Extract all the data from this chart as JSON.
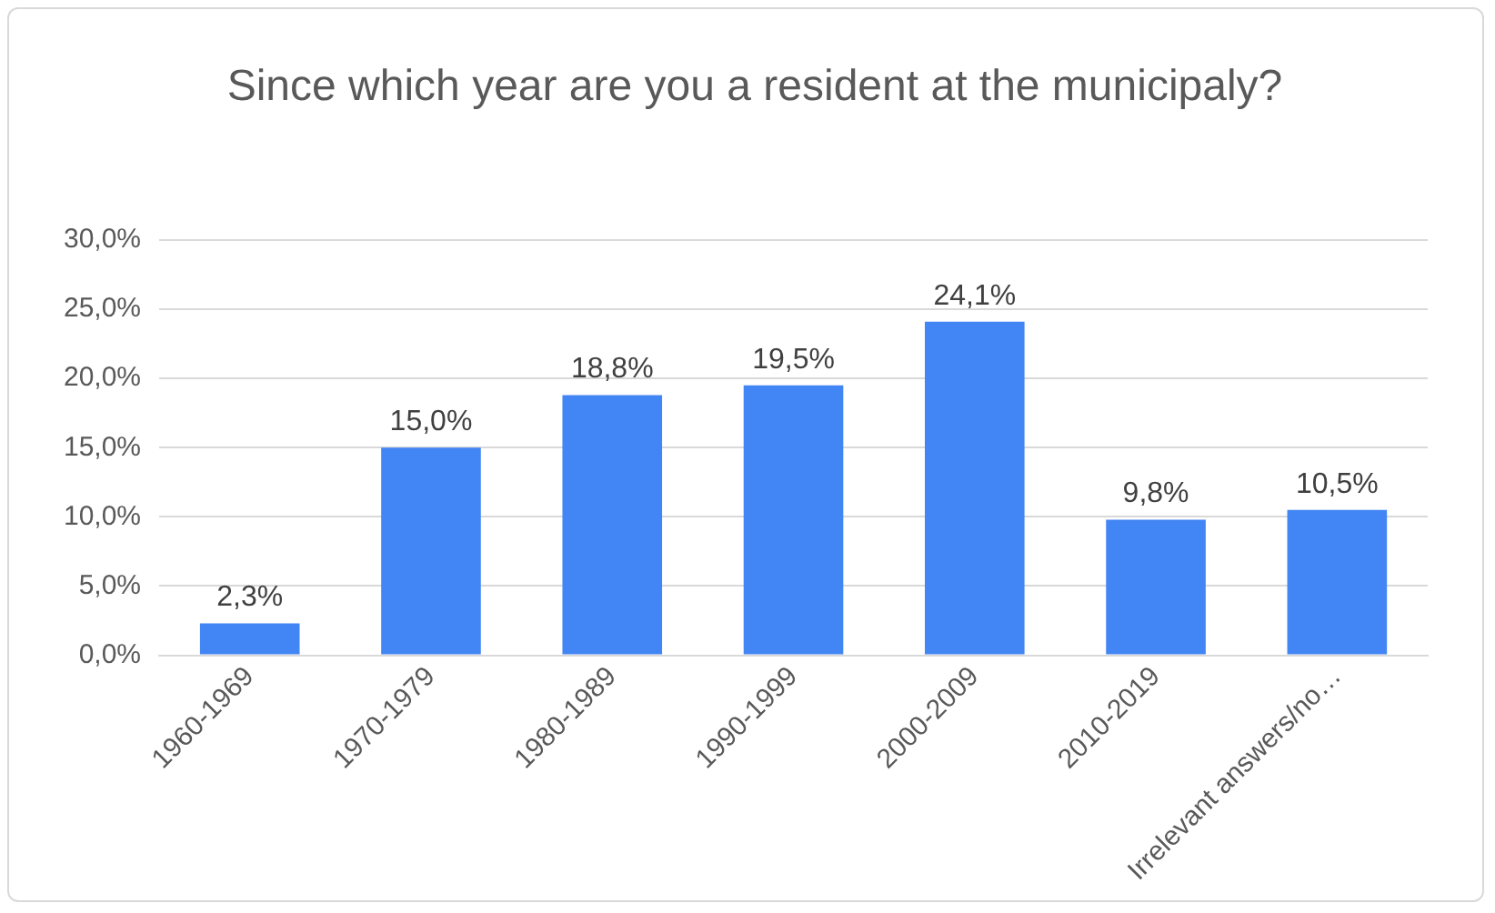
{
  "chart_data": {
    "type": "bar",
    "title": "Since which year are you a resident at the municipaly?",
    "categories": [
      "1960-1969",
      "1970-1979",
      "1980-1989",
      "1990-1999",
      "2000-2009",
      "2010-2019",
      "Irrelevant answers/no…"
    ],
    "values": [
      2.3,
      15.0,
      18.8,
      19.5,
      24.1,
      9.8,
      10.5
    ],
    "value_labels": [
      "2,3%",
      "15,0%",
      "18,8%",
      "19,5%",
      "24,1%",
      "9,8%",
      "10,5%"
    ],
    "color": "#4285f4",
    "ylim": [
      0,
      30
    ],
    "yticks": [
      {
        "value": 0,
        "label": "0,0%"
      },
      {
        "value": 5,
        "label": "5,0%"
      },
      {
        "value": 10,
        "label": "10,0%"
      },
      {
        "value": 15,
        "label": "15,0%"
      },
      {
        "value": 20,
        "label": "20,0%"
      },
      {
        "value": 25,
        "label": "25,0%"
      },
      {
        "value": 30,
        "label": "30,0%"
      }
    ],
    "grid": "y",
    "legend": false
  }
}
